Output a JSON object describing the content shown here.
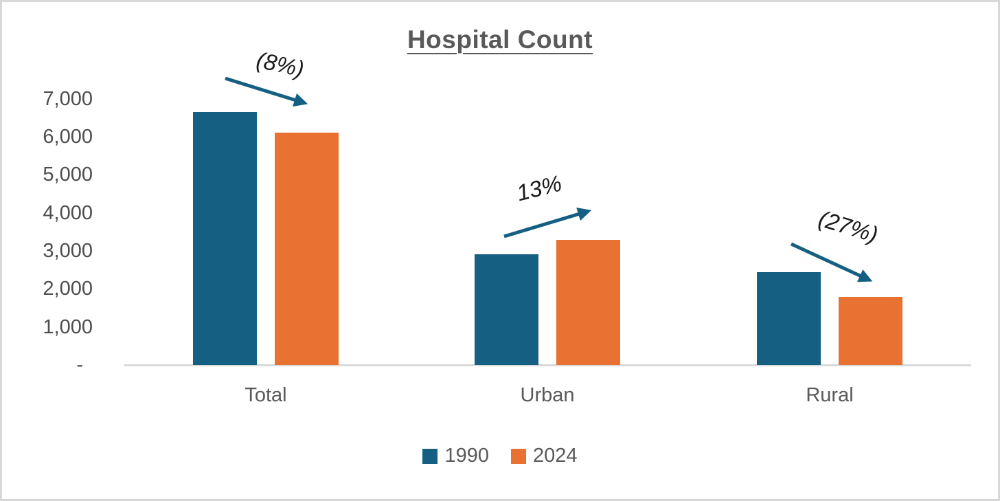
{
  "page": {
    "background": "#ffffff",
    "frame_border_color": "#d8d8d8"
  },
  "chart_data": {
    "type": "bar",
    "title": "Hospital Count",
    "categories": [
      "Total",
      "Urban",
      "Rural"
    ],
    "series": [
      {
        "name": "1990",
        "color": "#156082",
        "values": [
          6650,
          2900,
          2440
        ]
      },
      {
        "name": "2024",
        "color": "#E97132",
        "values": [
          6100,
          3290,
          1780
        ]
      }
    ],
    "y_axis": {
      "min": 0,
      "max": 7000,
      "step": 1000,
      "tick_labels": [
        "7,000",
        "6,000",
        "5,000",
        "4,000",
        "3,000",
        "2,000",
        "1,000",
        "-"
      ]
    },
    "annotations": [
      {
        "label": "(8%)",
        "category": "Total",
        "trend": "down"
      },
      {
        "label": "13%",
        "category": "Urban",
        "trend": "up"
      },
      {
        "label": "(27%)",
        "category": "Rural",
        "trend": "down"
      }
    ],
    "legend": {
      "position": "bottom"
    },
    "grid": false,
    "arrow_color": "#156082",
    "axis_line_color": "#D9D9D9",
    "text_color": "#595959"
  }
}
